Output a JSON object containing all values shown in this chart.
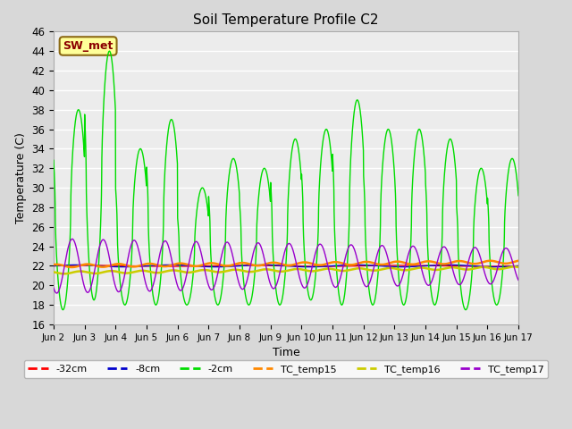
{
  "title": "Soil Temperature Profile C2",
  "xlabel": "Time",
  "ylabel": "Temperature (C)",
  "ylim": [
    16,
    46
  ],
  "yticks": [
    16,
    18,
    20,
    22,
    24,
    26,
    28,
    30,
    32,
    34,
    36,
    38,
    40,
    42,
    44,
    46
  ],
  "background_color": "#d8d8d8",
  "plot_bg_color": "#ececec",
  "annotation_text": "SW_met",
  "annotation_color": "#8b0000",
  "annotation_bg": "#ffff99",
  "annotation_edge": "#8b6914",
  "series": {
    "neg32cm": {
      "color": "#ff0000",
      "label": "-32cm"
    },
    "neg8cm": {
      "color": "#0000cc",
      "label": "-8cm"
    },
    "neg2cm": {
      "color": "#00dd00",
      "label": "-2cm"
    },
    "tc15": {
      "color": "#ff8800",
      "label": "TC_temp15"
    },
    "tc16": {
      "color": "#cccc00",
      "label": "TC_temp16"
    },
    "tc17": {
      "color": "#9900cc",
      "label": "TC_temp17"
    }
  },
  "n_days": 15,
  "points_per_day": 144,
  "day_peaks_neg2cm": [
    38,
    44,
    34,
    37,
    30,
    33,
    32,
    35,
    36,
    39,
    36,
    36,
    35,
    32,
    33
  ],
  "day_troughs_neg2cm": [
    17.5,
    18.5,
    18,
    18,
    18,
    18,
    18,
    18,
    18.5,
    18,
    18,
    18,
    18,
    17.5,
    18
  ],
  "xtick_labels": [
    "Jun 2",
    "Jun 3",
    "Jun 4",
    "Jun 5",
    "Jun 6",
    "Jun 7",
    "Jun 8",
    "Jun 9",
    "Jun 10",
    "Jun 11",
    "Jun 12",
    "Jun 13",
    "Jun 14",
    "Jun 15",
    "Jun 16",
    "Jun 17"
  ],
  "xtick_positions": [
    0,
    1,
    2,
    3,
    4,
    5,
    6,
    7,
    8,
    9,
    10,
    11,
    12,
    13,
    14,
    15
  ]
}
